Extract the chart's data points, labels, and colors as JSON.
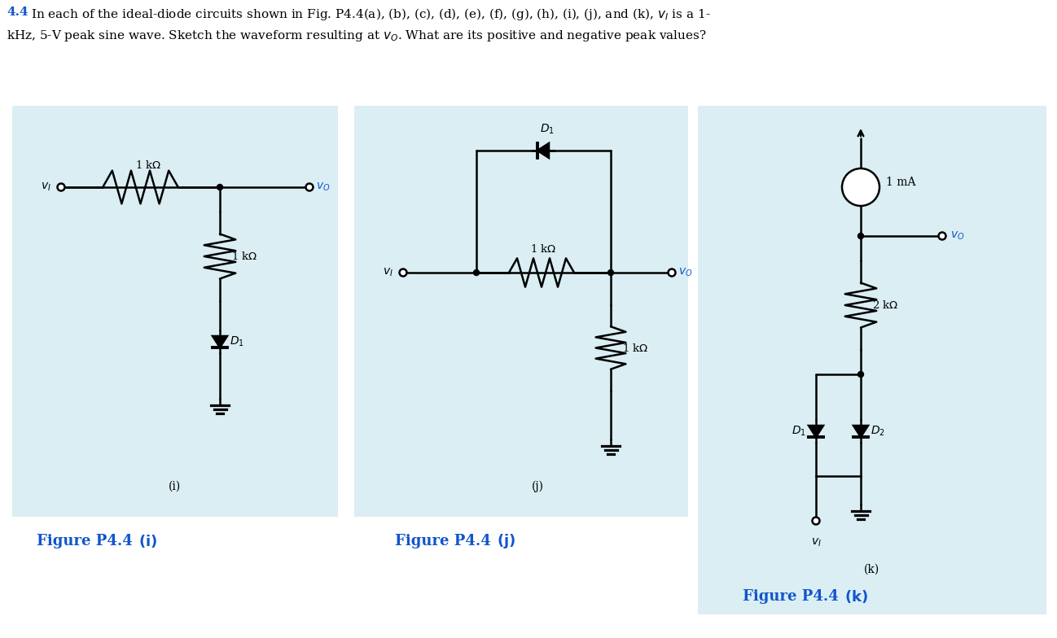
{
  "bg_color": "#ffffff",
  "panel_bg": "#daeef3",
  "blue_text": "#1155cc",
  "fig_width": 12.98,
  "fig_height": 7.84,
  "dpi": 100,
  "header_line1_plain": " In each of the ideal-diode circuits shown in Fig. P4.4",
  "header_fig_refs": "(a), (b), (c), (d), (e), (f), (g), (h), (i), (j), and (k),",
  "header_vi": "v",
  "header_suffix1": " is a 1-",
  "header_line2": "kHz, 5-V peak sine wave. Sketch the waveform resulting at ",
  "header_vo": "v",
  "header_suffix2": ". What are its positive and negative peak values?",
  "panel_i_bounds": [
    15,
    130,
    415,
    635
  ],
  "panel_j_bounds": [
    435,
    130,
    845,
    635
  ],
  "panel_k_bounds": [
    857,
    130,
    1285,
    755
  ],
  "label_i": "(i)",
  "label_j": "(j)",
  "label_k": "(k)",
  "cap_i": "Figure P4.4",
  "cap_i_letter": "(i)",
  "cap_j": "Figure P4.4",
  "cap_j_letter": "(j)",
  "cap_k": "Figure P4.4",
  "cap_k_letter": "(k)"
}
